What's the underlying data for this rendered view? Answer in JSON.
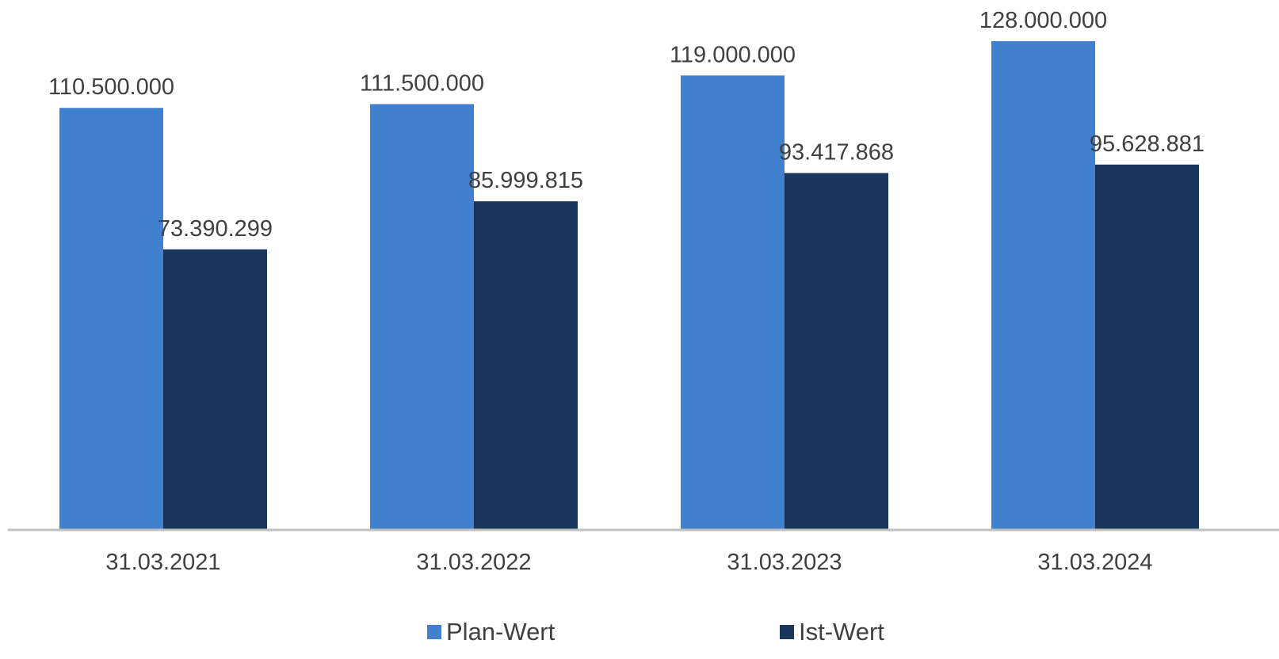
{
  "chart_data": {
    "type": "bar",
    "categories": [
      "31.03.2021",
      "31.03.2022",
      "31.03.2023",
      "31.03.2024"
    ],
    "series": [
      {
        "name": "Plan-Wert",
        "values": [
          110500000,
          111500000,
          119000000,
          128000000
        ],
        "labels": [
          "110.500.000",
          "111.500.000",
          "119.000.000",
          "128.000.000"
        ],
        "color": "#4180cf"
      },
      {
        "name": "Ist-Wert",
        "values": [
          73390299,
          85999815,
          93417868,
          95628881
        ],
        "labels": [
          "73.390.299",
          "85.999.815",
          "93.417.868",
          "95.628.881"
        ],
        "color": "#1b365d"
      }
    ],
    "ylim": [
      0,
      128000000
    ],
    "grid": false,
    "legend_position": "bottom",
    "axis_color": "#bfbfbf",
    "label_color": "#404040"
  }
}
